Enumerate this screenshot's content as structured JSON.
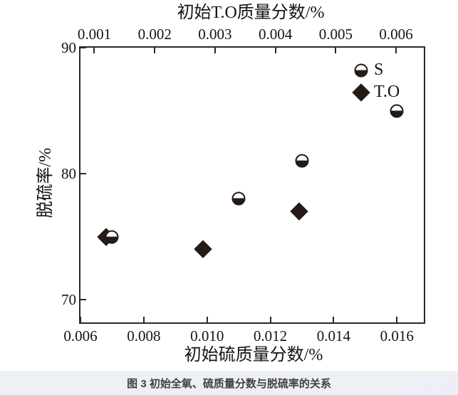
{
  "figure": {
    "caption": "图 3 初始全氧、硫质量分数与脱硫率的关系",
    "watermark": "上海谓"
  },
  "colors": {
    "marker_ink": "#241a16",
    "axis_ink": "#2d2825",
    "caption_bar_bg": "#edf1f6",
    "caption_text": "#404040",
    "watermark_text": "#efecf9",
    "plot_bg": "#ffffff"
  },
  "chart_data": {
    "type": "scatter",
    "grid": false,
    "legend_position": "top-right",
    "axes": {
      "x_top": {
        "label": "初始T.O质量分数/%",
        "tick_values": [
          0.001,
          0.002,
          0.003,
          0.004,
          0.005,
          0.006
        ],
        "tick_labels": [
          "0.001",
          "0.002",
          "0.003",
          "0.004",
          "0.005",
          "0.006"
        ],
        "lim": [
          0.00077,
          0.00646
        ]
      },
      "x_bottom": {
        "label": "初始硫质量分数/%",
        "tick_values": [
          0.006,
          0.008,
          0.01,
          0.012,
          0.014,
          0.016
        ],
        "tick_labels": [
          "0.006",
          "0.008",
          "0.010",
          "0.012",
          "0.014",
          "0.016"
        ],
        "lim": [
          0.006,
          0.01685
        ]
      },
      "y_left": {
        "label": "脱硫率/%",
        "tick_values": [
          90,
          80,
          70
        ],
        "tick_labels": [
          "90",
          "80",
          "70"
        ],
        "lim": [
          68.2,
          90
        ]
      }
    },
    "series": [
      {
        "name": "S",
        "marker": "circle-half",
        "x_axis": "x_bottom",
        "points": [
          {
            "x": 0.007,
            "y": 75
          },
          {
            "x": 0.011,
            "y": 78
          },
          {
            "x": 0.013,
            "y": 81
          },
          {
            "x": 0.016,
            "y": 85
          }
        ]
      },
      {
        "name": "T.O",
        "marker": "diamond",
        "x_axis": "x_top",
        "points": [
          {
            "x": 0.0012,
            "y": 75
          },
          {
            "x": 0.0028,
            "y": 74
          },
          {
            "x": 0.0044,
            "y": 77
          }
        ]
      }
    ]
  }
}
